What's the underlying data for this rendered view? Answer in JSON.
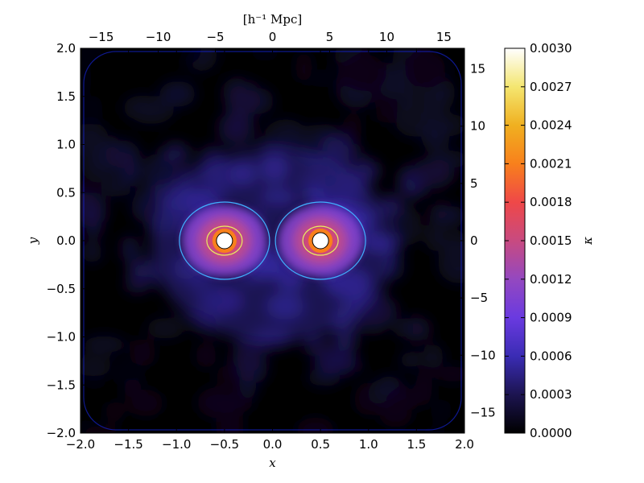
{
  "chart_data": {
    "type": "heatmap",
    "title": "",
    "xlabel": "x",
    "ylabel": "y",
    "top_xlabel": "[h⁻¹ Mpc]",
    "right_ylabel": "",
    "colorbar_label": "κ",
    "xlim": [
      -2.0,
      2.0
    ],
    "ylim": [
      -2.0,
      2.0
    ],
    "x_ticks": [
      "−2.0",
      "−1.5",
      "−1.0",
      "−0.5",
      "0.0",
      "0.5",
      "1.0",
      "1.5",
      "2.0"
    ],
    "y_ticks": [
      "−2.0",
      "−1.5",
      "−1.0",
      "−0.5",
      "0.0",
      "0.5",
      "1.0",
      "1.5",
      "2.0"
    ],
    "top_ticks": [
      "−15",
      "−10",
      "−5",
      "0",
      "5",
      "10",
      "15"
    ],
    "top_tick_values": [
      -15,
      -10,
      -5,
      0,
      5,
      10,
      15
    ],
    "top_range_mpc": [
      -16.8,
      16.8
    ],
    "right_ticks": [
      "15",
      "10",
      "5",
      "0",
      "−5",
      "−10",
      "−15"
    ],
    "right_tick_values": [
      15,
      10,
      5,
      0,
      -5,
      -10,
      -15
    ],
    "right_range_mpc": [
      -16.8,
      16.8
    ],
    "colorbar_range": [
      0.0,
      0.003
    ],
    "colorbar_ticks": [
      "0.0000",
      "0.0003",
      "0.0006",
      "0.0009",
      "0.0012",
      "0.0015",
      "0.0018",
      "0.0021",
      "0.0024",
      "0.0027",
      "0.0030"
    ],
    "colorbar_tick_values": [
      0.0,
      0.0003,
      0.0006,
      0.0009,
      0.0012,
      0.0015,
      0.0018,
      0.0021,
      0.0024,
      0.0027,
      0.003
    ],
    "colormap": [
      "#000000",
      "#1c1450",
      "#3a2cb4",
      "#6a3ae0",
      "#9448c0",
      "#c84a80",
      "#ef4848",
      "#f8801c",
      "#f0b020",
      "#f4e670",
      "#ffffff"
    ],
    "clusters": [
      {
        "name": "",
        "x": -0.5,
        "y": 0.0,
        "peak_kappa": 0.003
      },
      {
        "name": "",
        "x": 0.5,
        "y": 0.0,
        "peak_kappa": 0.003
      }
    ],
    "contours": [
      "#1a2cff",
      "#40b0ff",
      "#e8f060"
    ],
    "grid": false,
    "legend": "none"
  }
}
